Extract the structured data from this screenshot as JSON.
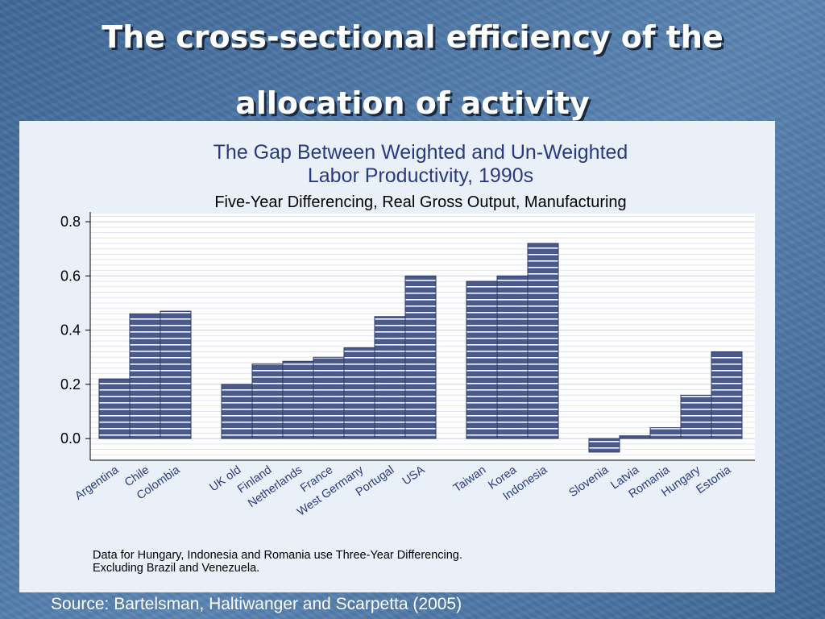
{
  "slide": {
    "title_line1": "The cross-sectional efficiency of the",
    "title_line2": "allocation of activity",
    "source": "Source:  Bartelsman, Haltiwanger and Scarpetta (2005)"
  },
  "colors": {
    "bar_fill": "#4a5a8c",
    "bar_stripe": "#ffffff",
    "title_text": "#2a3a80",
    "plot_bg": "#ffffff",
    "panel_bg": "#eaf0f8"
  },
  "chart_data": {
    "type": "bar",
    "title_line1": "The Gap Between Weighted and Un-Weighted",
    "title_line2": "Labor Productivity, 1990s",
    "subtitle": "Five-Year Differencing, Real Gross Output, Manufacturing",
    "xlabel": "",
    "ylabel": "",
    "ylim": [
      -0.08,
      0.83
    ],
    "yticks": [
      "0.8",
      "0.6",
      "0.4",
      "0.2",
      "0.0"
    ],
    "ytick_values": [
      0.8,
      0.6,
      0.4,
      0.2,
      0.0
    ],
    "grid": true,
    "legend": "none",
    "groups": [
      {
        "categories": [
          "Argentina",
          "Chile",
          "Colombia"
        ],
        "values": [
          0.22,
          0.46,
          0.47
        ]
      },
      {
        "categories": [
          "UK old",
          "Finland",
          "Netherlands",
          "France",
          "West Germany",
          "Portugal",
          "USA"
        ],
        "values": [
          0.2,
          0.275,
          0.285,
          0.3,
          0.335,
          0.45,
          0.6
        ]
      },
      {
        "categories": [
          "Taiwan",
          "Korea",
          "Indonesia"
        ],
        "values": [
          0.58,
          0.6,
          0.72
        ]
      },
      {
        "categories": [
          "Slovenia",
          "Latvia",
          "Romania",
          "Hungary",
          "Estonia"
        ],
        "values": [
          -0.05,
          0.01,
          0.04,
          0.16,
          0.32
        ]
      }
    ],
    "note_line1": "Data for Hungary, Indonesia and Romania use Three-Year Differencing.",
    "note_line2": "Excluding Brazil and Venezuela."
  }
}
